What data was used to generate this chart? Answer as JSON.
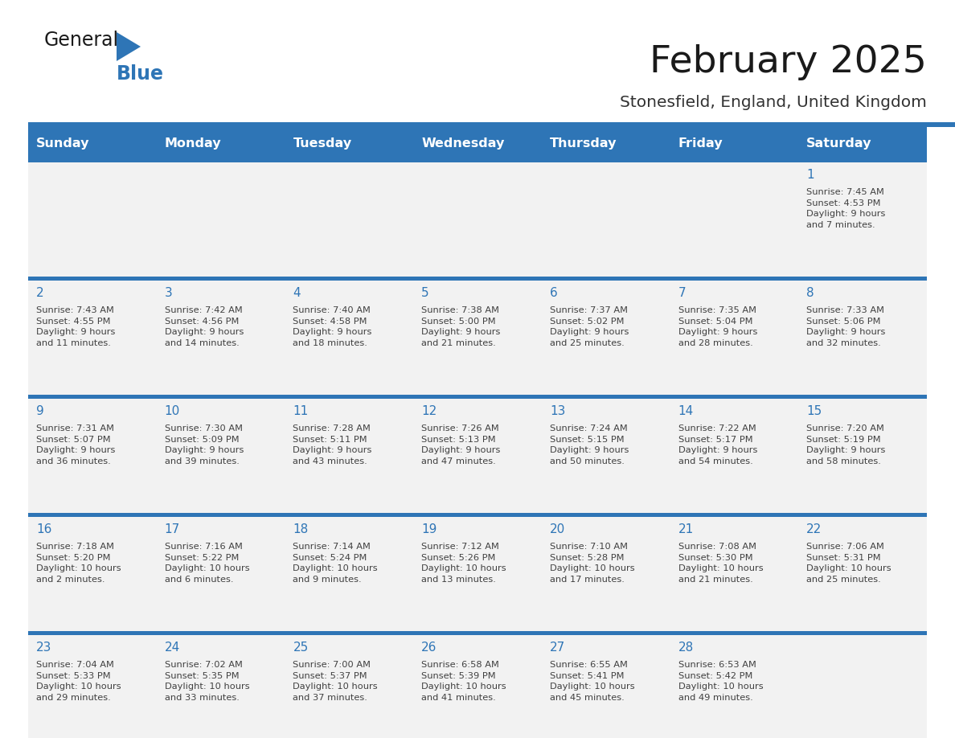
{
  "title": "February 2025",
  "subtitle": "Stonesfield, England, United Kingdom",
  "days_of_week": [
    "Sunday",
    "Monday",
    "Tuesday",
    "Wednesday",
    "Thursday",
    "Friday",
    "Saturday"
  ],
  "header_bg": "#2E75B6",
  "header_text": "#FFFFFF",
  "row_bg": "#F2F2F2",
  "separator_color": "#2E75B6",
  "cell_text_color": "#404040",
  "day_num_color": "#2E75B6",
  "title_color": "#1a1a1a",
  "subtitle_color": "#333333",
  "logo_general_color": "#1a1a1a",
  "logo_blue_color": "#2E75B6",
  "calendar_data": [
    [
      {
        "day": null,
        "info": null
      },
      {
        "day": null,
        "info": null
      },
      {
        "day": null,
        "info": null
      },
      {
        "day": null,
        "info": null
      },
      {
        "day": null,
        "info": null
      },
      {
        "day": null,
        "info": null
      },
      {
        "day": 1,
        "info": "Sunrise: 7:45 AM\nSunset: 4:53 PM\nDaylight: 9 hours\nand 7 minutes."
      }
    ],
    [
      {
        "day": 2,
        "info": "Sunrise: 7:43 AM\nSunset: 4:55 PM\nDaylight: 9 hours\nand 11 minutes."
      },
      {
        "day": 3,
        "info": "Sunrise: 7:42 AM\nSunset: 4:56 PM\nDaylight: 9 hours\nand 14 minutes."
      },
      {
        "day": 4,
        "info": "Sunrise: 7:40 AM\nSunset: 4:58 PM\nDaylight: 9 hours\nand 18 minutes."
      },
      {
        "day": 5,
        "info": "Sunrise: 7:38 AM\nSunset: 5:00 PM\nDaylight: 9 hours\nand 21 minutes."
      },
      {
        "day": 6,
        "info": "Sunrise: 7:37 AM\nSunset: 5:02 PM\nDaylight: 9 hours\nand 25 minutes."
      },
      {
        "day": 7,
        "info": "Sunrise: 7:35 AM\nSunset: 5:04 PM\nDaylight: 9 hours\nand 28 minutes."
      },
      {
        "day": 8,
        "info": "Sunrise: 7:33 AM\nSunset: 5:06 PM\nDaylight: 9 hours\nand 32 minutes."
      }
    ],
    [
      {
        "day": 9,
        "info": "Sunrise: 7:31 AM\nSunset: 5:07 PM\nDaylight: 9 hours\nand 36 minutes."
      },
      {
        "day": 10,
        "info": "Sunrise: 7:30 AM\nSunset: 5:09 PM\nDaylight: 9 hours\nand 39 minutes."
      },
      {
        "day": 11,
        "info": "Sunrise: 7:28 AM\nSunset: 5:11 PM\nDaylight: 9 hours\nand 43 minutes."
      },
      {
        "day": 12,
        "info": "Sunrise: 7:26 AM\nSunset: 5:13 PM\nDaylight: 9 hours\nand 47 minutes."
      },
      {
        "day": 13,
        "info": "Sunrise: 7:24 AM\nSunset: 5:15 PM\nDaylight: 9 hours\nand 50 minutes."
      },
      {
        "day": 14,
        "info": "Sunrise: 7:22 AM\nSunset: 5:17 PM\nDaylight: 9 hours\nand 54 minutes."
      },
      {
        "day": 15,
        "info": "Sunrise: 7:20 AM\nSunset: 5:19 PM\nDaylight: 9 hours\nand 58 minutes."
      }
    ],
    [
      {
        "day": 16,
        "info": "Sunrise: 7:18 AM\nSunset: 5:20 PM\nDaylight: 10 hours\nand 2 minutes."
      },
      {
        "day": 17,
        "info": "Sunrise: 7:16 AM\nSunset: 5:22 PM\nDaylight: 10 hours\nand 6 minutes."
      },
      {
        "day": 18,
        "info": "Sunrise: 7:14 AM\nSunset: 5:24 PM\nDaylight: 10 hours\nand 9 minutes."
      },
      {
        "day": 19,
        "info": "Sunrise: 7:12 AM\nSunset: 5:26 PM\nDaylight: 10 hours\nand 13 minutes."
      },
      {
        "day": 20,
        "info": "Sunrise: 7:10 AM\nSunset: 5:28 PM\nDaylight: 10 hours\nand 17 minutes."
      },
      {
        "day": 21,
        "info": "Sunrise: 7:08 AM\nSunset: 5:30 PM\nDaylight: 10 hours\nand 21 minutes."
      },
      {
        "day": 22,
        "info": "Sunrise: 7:06 AM\nSunset: 5:31 PM\nDaylight: 10 hours\nand 25 minutes."
      }
    ],
    [
      {
        "day": 23,
        "info": "Sunrise: 7:04 AM\nSunset: 5:33 PM\nDaylight: 10 hours\nand 29 minutes."
      },
      {
        "day": 24,
        "info": "Sunrise: 7:02 AM\nSunset: 5:35 PM\nDaylight: 10 hours\nand 33 minutes."
      },
      {
        "day": 25,
        "info": "Sunrise: 7:00 AM\nSunset: 5:37 PM\nDaylight: 10 hours\nand 37 minutes."
      },
      {
        "day": 26,
        "info": "Sunrise: 6:58 AM\nSunset: 5:39 PM\nDaylight: 10 hours\nand 41 minutes."
      },
      {
        "day": 27,
        "info": "Sunrise: 6:55 AM\nSunset: 5:41 PM\nDaylight: 10 hours\nand 45 minutes."
      },
      {
        "day": 28,
        "info": "Sunrise: 6:53 AM\nSunset: 5:42 PM\nDaylight: 10 hours\nand 49 minutes."
      },
      {
        "day": null,
        "info": null
      }
    ]
  ]
}
